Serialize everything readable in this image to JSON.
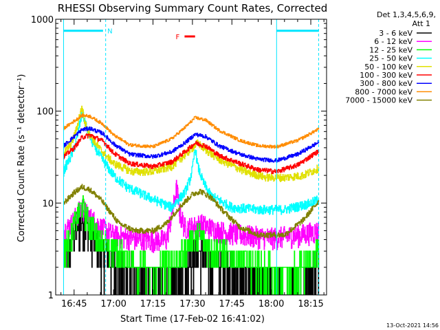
{
  "chart_data": {
    "type": "line",
    "title": "RHESSI Observing Summary Count Rates, Corrected",
    "xlabel": "Start Time (17-Feb-02 16:41:02)",
    "ylabel": "Corrected Count Rate (s⁻¹ detector⁻¹)",
    "y_scale": "log",
    "ylim": [
      1,
      1000
    ],
    "y_ticks": [
      {
        "value": 1,
        "label": "1"
      },
      {
        "value": 10,
        "label": "10"
      },
      {
        "value": 100,
        "label": "100"
      },
      {
        "value": 1000,
        "label": "1000"
      }
    ],
    "xlim": [
      "16:38",
      "18:21"
    ],
    "x_ticks": [
      "16:45",
      "17:00",
      "17:15",
      "17:30",
      "17:45",
      "18:00",
      "18:15"
    ],
    "grid": false,
    "legend_header": [
      "Det 1,3,4,5,6,9,",
      "Att 1"
    ],
    "legend_position": "right",
    "timestamp": "13-Oct-2021 14:56",
    "series": [
      {
        "name": "3 - 6 keV",
        "color": "#000000",
        "times": [
          "16:41",
          "16:44",
          "16:46",
          "16:48",
          "16:50",
          "16:55",
          "17:00",
          "17:10",
          "17:20",
          "17:25",
          "17:28",
          "17:30",
          "17:32",
          "17:36",
          "17:45",
          "17:55",
          "18:05",
          "18:15",
          "18:18"
        ],
        "values": [
          2.3,
          3.5,
          5.5,
          7.0,
          5.5,
          3.0,
          2.3,
          1.5,
          1.2,
          1.5,
          2.2,
          2.8,
          3.0,
          2.5,
          1.8,
          1.3,
          1.1,
          1.5,
          2.6
        ]
      },
      {
        "name": "6 - 12 keV",
        "color": "#ff00ff",
        "times": [
          "16:41",
          "16:44",
          "16:46",
          "16:48",
          "16:50",
          "16:55",
          "17:00",
          "17:10",
          "17:20",
          "17:23",
          "17:24",
          "17:25",
          "17:27",
          "17:30",
          "17:33",
          "17:36",
          "17:40",
          "17:50",
          "18:00",
          "18:10",
          "18:18"
        ],
        "values": [
          5.0,
          6.0,
          7.5,
          9.0,
          7.5,
          5.5,
          4.5,
          4.0,
          4.0,
          10.0,
          15.0,
          8.0,
          5.5,
          5.5,
          6.0,
          5.5,
          5.0,
          4.5,
          4.2,
          4.5,
          5.0
        ]
      },
      {
        "name": "12 - 25 keV",
        "color": "#00ff00",
        "times": [
          "16:41",
          "16:44",
          "16:46",
          "16:48",
          "16:50",
          "16:53",
          "16:57",
          "17:05",
          "17:15",
          "17:25",
          "17:28",
          "17:30",
          "17:33",
          "17:36",
          "17:45",
          "17:55",
          "18:05",
          "18:15",
          "18:18"
        ],
        "values": [
          3.0,
          4.5,
          7.0,
          9.5,
          7.0,
          4.5,
          3.5,
          2.5,
          1.8,
          2.5,
          3.5,
          4.0,
          4.5,
          3.5,
          2.5,
          2.0,
          1.8,
          2.2,
          3.0
        ]
      },
      {
        "name": "25 - 50 keV",
        "color": "#00ffff",
        "times": [
          "16:41",
          "16:42",
          "16:44",
          "16:46",
          "16:47",
          "16:48",
          "16:49",
          "16:50",
          "16:52",
          "16:55",
          "16:58",
          "17:00",
          "17:05",
          "17:15",
          "17:22",
          "17:27",
          "17:29",
          "17:30",
          "17:31",
          "17:32",
          "17:34",
          "17:37",
          "17:45",
          "17:55",
          "18:05",
          "18:12",
          "18:15",
          "18:18"
        ],
        "values": [
          22,
          26,
          33,
          50,
          70,
          95,
          80,
          62,
          45,
          32,
          24,
          20,
          15,
          11,
          9,
          13,
          18,
          24,
          40,
          25,
          17,
          12,
          9,
          8.5,
          8.5,
          9.5,
          10,
          11
        ]
      },
      {
        "name": "50 - 100 keV",
        "color": "#e0e000",
        "times": [
          "16:41",
          "16:44",
          "16:46",
          "16:47",
          "16:48",
          "16:49",
          "16:51",
          "16:55",
          "17:00",
          "17:07",
          "17:15",
          "17:22",
          "17:27",
          "17:30",
          "17:32",
          "17:35",
          "17:40",
          "17:50",
          "17:58",
          "18:05",
          "18:12",
          "18:18"
        ],
        "values": [
          35,
          45,
          65,
          90,
          110,
          75,
          55,
          38,
          27,
          22,
          22,
          25,
          33,
          40,
          45,
          38,
          30,
          22,
          19,
          19,
          20,
          24
        ]
      },
      {
        "name": "100 - 300 keV",
        "color": "#ff0000",
        "times": [
          "16:41",
          "16:45",
          "16:48",
          "16:51",
          "16:56",
          "17:00",
          "17:06",
          "17:15",
          "17:22",
          "17:27",
          "17:31",
          "17:35",
          "17:40",
          "17:48",
          "17:55",
          "18:02",
          "18:10",
          "18:18"
        ],
        "values": [
          32,
          40,
          52,
          55,
          47,
          35,
          27,
          25,
          28,
          36,
          45,
          42,
          33,
          27,
          23,
          22,
          26,
          37
        ]
      },
      {
        "name": "300 - 800 keV",
        "color": "#0000ff",
        "times": [
          "16:41",
          "16:45",
          "16:48",
          "16:51",
          "16:56",
          "17:00",
          "17:06",
          "17:15",
          "17:22",
          "17:27",
          "17:31",
          "17:35",
          "17:40",
          "17:48",
          "17:55",
          "18:02",
          "18:10",
          "18:18"
        ],
        "values": [
          42,
          53,
          63,
          65,
          57,
          44,
          34,
          32,
          36,
          45,
          56,
          53,
          42,
          34,
          30,
          29,
          34,
          46
        ]
      },
      {
        "name": "800 - 7000 keV",
        "color": "#ff8c00",
        "times": [
          "16:41",
          "16:45",
          "16:48",
          "16:51",
          "16:56",
          "17:00",
          "17:06",
          "17:15",
          "17:22",
          "17:27",
          "17:31",
          "17:35",
          "17:40",
          "17:48",
          "17:55",
          "18:02",
          "18:10",
          "18:18"
        ],
        "values": [
          65,
          78,
          90,
          88,
          72,
          55,
          43,
          41,
          50,
          66,
          85,
          80,
          62,
          48,
          42,
          41,
          48,
          64
        ]
      },
      {
        "name": "7000 - 15000 keV",
        "color": "#808000",
        "times": [
          "16:41",
          "16:45",
          "16:48",
          "16:51",
          "16:55",
          "16:58",
          "17:02",
          "17:08",
          "17:15",
          "17:20",
          "17:25",
          "17:30",
          "17:33",
          "17:37",
          "17:42",
          "17:48",
          "17:55",
          "18:05",
          "18:12",
          "18:18"
        ],
        "values": [
          10,
          13,
          15,
          14,
          11,
          8.5,
          6.0,
          5.0,
          5.0,
          6.0,
          9.0,
          12.5,
          13.5,
          11.5,
          8.0,
          5.5,
          4.5,
          4.5,
          6.5,
          10.5
        ]
      }
    ],
    "annotations": {
      "night_bars": [
        {
          "start": "16:41",
          "end": "16:56",
          "value": 750
        },
        {
          "start": "18:02",
          "end": "18:18",
          "value": 750
        }
      ],
      "night_label": "N",
      "saa_label": "F",
      "saa_bar": {
        "start": "17:27",
        "end": "17:31",
        "value": 650
      },
      "markers_solid": [
        "16:41",
        "18:02"
      ],
      "markers_dashed": [
        "16:57",
        "18:18"
      ]
    }
  }
}
